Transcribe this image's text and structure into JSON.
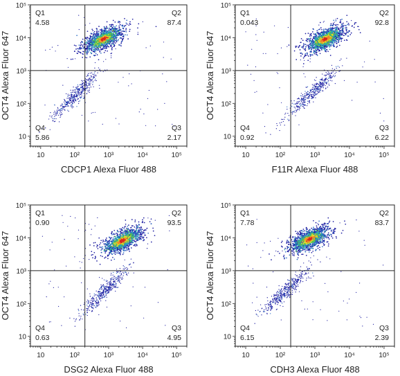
{
  "chart_data": [
    {
      "type": "scatter",
      "xlabel": "CDCP1 Alexa Fluor 488",
      "ylabel": "OCT4 Alexa Fluor 647",
      "xscale": "log",
      "yscale": "log",
      "xlim": [
        5,
        200000
      ],
      "ylim": [
        5,
        100000
      ],
      "xticks": [
        "10",
        "10²",
        "10³",
        "10⁴",
        "10⁵"
      ],
      "yticks": [
        "10",
        "10²",
        "10³",
        "10⁴",
        "10⁵"
      ],
      "gate": {
        "x": 200,
        "y": 1000
      },
      "quadrants": [
        {
          "name": "Q1",
          "value": "4.58"
        },
        {
          "name": "Q2",
          "value": "87.4"
        },
        {
          "name": "Q3",
          "value": "2.17"
        },
        {
          "name": "Q4",
          "value": "5.86"
        }
      ],
      "population": {
        "main_center": [
          700,
          9000
        ],
        "secondary_center": [
          120,
          200
        ]
      }
    },
    {
      "type": "scatter",
      "xlabel": "F11R Alexa Fluor 488",
      "ylabel": "OCT4 Alexa Fluor 647",
      "xscale": "log",
      "yscale": "log",
      "xlim": [
        5,
        200000
      ],
      "ylim": [
        5,
        100000
      ],
      "xticks": [
        "10",
        "10²",
        "10³",
        "10⁴",
        "10⁵"
      ],
      "yticks": [
        "10",
        "10²",
        "10³",
        "10⁴",
        "10⁵"
      ],
      "gate": {
        "x": 200,
        "y": 1000
      },
      "quadrants": [
        {
          "name": "Q1",
          "value": "0.043"
        },
        {
          "name": "Q2",
          "value": "92.8"
        },
        {
          "name": "Q3",
          "value": "6.22"
        },
        {
          "name": "Q4",
          "value": "0.92"
        }
      ],
      "population": {
        "main_center": [
          2000,
          9000
        ],
        "secondary_center": [
          800,
          200
        ]
      }
    },
    {
      "type": "scatter",
      "xlabel": "DSG2 Alexa Fluor 488",
      "ylabel": "OCT4 Alexa Fluor 647",
      "xscale": "log",
      "yscale": "log",
      "xlim": [
        5,
        200000
      ],
      "ylim": [
        5,
        100000
      ],
      "xticks": [
        "10",
        "10²",
        "10³",
        "10⁴",
        "10⁵"
      ],
      "yticks": [
        "10",
        "10²",
        "10³",
        "10⁴",
        "10⁵"
      ],
      "gate": {
        "x": 200,
        "y": 1000
      },
      "quadrants": [
        {
          "name": "Q1",
          "value": "0.90"
        },
        {
          "name": "Q2",
          "value": "93.5"
        },
        {
          "name": "Q3",
          "value": "4.95"
        },
        {
          "name": "Q4",
          "value": "0.63"
        }
      ],
      "population": {
        "main_center": [
          2500,
          8000
        ],
        "secondary_center": [
          800,
          250
        ]
      }
    },
    {
      "type": "scatter",
      "xlabel": "CDH3 Alexa Fluor 488",
      "ylabel": "OCT4 Alexa Fluor 647",
      "xscale": "log",
      "yscale": "log",
      "xlim": [
        5,
        200000
      ],
      "ylim": [
        5,
        100000
      ],
      "xticks": [
        "10",
        "10²",
        "10³",
        "10⁴",
        "10⁵"
      ],
      "yticks": [
        "10",
        "10²",
        "10³",
        "10⁴",
        "10⁵"
      ],
      "gate": {
        "x": 200,
        "y": 1000
      },
      "quadrants": [
        {
          "name": "Q1",
          "value": "7.78"
        },
        {
          "name": "Q2",
          "value": "83.7"
        },
        {
          "name": "Q3",
          "value": "2.39"
        },
        {
          "name": "Q4",
          "value": "6.15"
        }
      ],
      "population": {
        "main_center": [
          700,
          9000
        ],
        "secondary_center": [
          150,
          250
        ]
      }
    }
  ],
  "colors": {
    "axis": "#222222",
    "density": [
      "#1a1aa0",
      "#2b6cc4",
      "#2bb1b0",
      "#5cc24a",
      "#e8d82a",
      "#f0852a",
      "#d7261e"
    ]
  }
}
